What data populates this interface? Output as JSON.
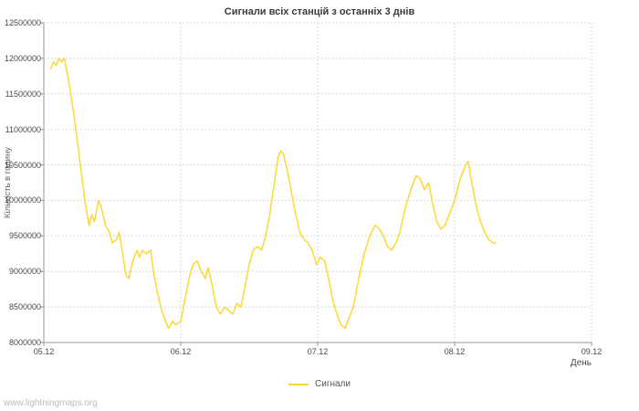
{
  "watermark": "www.lightningmaps.org",
  "colors": {
    "line": "#fdd835",
    "grid": "#d9d9d9",
    "axis": "#999999",
    "text": "#4a4a4a"
  },
  "chart_data": {
    "type": "line",
    "title": "Сигнали всіх станцій з останніх 3 днів",
    "xlabel": "День",
    "ylabel": "Кількість в годину",
    "xlim": [
      0,
      4
    ],
    "ylim": [
      8000000,
      12500000
    ],
    "grid": true,
    "y_ticks": [
      8000000,
      8500000,
      9000000,
      9500000,
      10000000,
      10500000,
      11000000,
      11500000,
      12000000,
      12500000
    ],
    "x_ticks": [
      {
        "pos": 0,
        "label": "05.12"
      },
      {
        "pos": 1,
        "label": "06.12"
      },
      {
        "pos": 2,
        "label": "07.12"
      },
      {
        "pos": 3,
        "label": "08.12"
      },
      {
        "pos": 4,
        "label": "09.12"
      }
    ],
    "legend": {
      "position": "bottom",
      "entries": [
        {
          "name": "Сигнали",
          "color": "#fdd835"
        }
      ]
    },
    "series": [
      {
        "name": "Сигнали",
        "color": "#fdd835",
        "x": [
          0.05,
          0.07,
          0.09,
          0.11,
          0.13,
          0.15,
          0.18,
          0.22,
          0.26,
          0.3,
          0.33,
          0.35,
          0.37,
          0.4,
          0.42,
          0.45,
          0.48,
          0.5,
          0.53,
          0.55,
          0.58,
          0.6,
          0.62,
          0.65,
          0.68,
          0.7,
          0.72,
          0.75,
          0.78,
          0.8,
          0.83,
          0.86,
          0.89,
          0.91,
          0.94,
          0.96,
          1.0,
          1.03,
          1.06,
          1.09,
          1.12,
          1.15,
          1.18,
          1.2,
          1.23,
          1.26,
          1.29,
          1.32,
          1.35,
          1.38,
          1.41,
          1.44,
          1.47,
          1.5,
          1.53,
          1.56,
          1.59,
          1.62,
          1.65,
          1.68,
          1.71,
          1.73,
          1.75,
          1.78,
          1.81,
          1.84,
          1.87,
          1.9,
          1.93,
          1.96,
          1.99,
          2.02,
          2.05,
          2.08,
          2.11,
          2.14,
          2.17,
          2.2,
          2.23,
          2.26,
          2.3,
          2.34,
          2.38,
          2.42,
          2.45,
          2.48,
          2.51,
          2.54,
          2.57,
          2.6,
          2.64,
          2.68,
          2.72,
          2.75,
          2.78,
          2.81,
          2.84,
          2.87,
          2.9,
          2.93,
          2.96,
          3.0,
          3.04,
          3.08,
          3.1,
          3.13,
          3.16,
          3.19,
          3.22,
          3.25,
          3.28,
          3.3
        ],
        "y": [
          11850000,
          11950000,
          11900000,
          12000000,
          11950000,
          12000000,
          11700000,
          11200000,
          10600000,
          10000000,
          9650000,
          9800000,
          9700000,
          10000000,
          9900000,
          9650000,
          9550000,
          9400000,
          9450000,
          9550000,
          9200000,
          8950000,
          8900000,
          9150000,
          9300000,
          9200000,
          9300000,
          9250000,
          9300000,
          9000000,
          8700000,
          8450000,
          8300000,
          8200000,
          8300000,
          8250000,
          8300000,
          8600000,
          8900000,
          9100000,
          9150000,
          9000000,
          8900000,
          9050000,
          8800000,
          8500000,
          8400000,
          8500000,
          8450000,
          8400000,
          8550000,
          8500000,
          8800000,
          9100000,
          9300000,
          9350000,
          9300000,
          9500000,
          9800000,
          10200000,
          10600000,
          10700000,
          10650000,
          10400000,
          10100000,
          9800000,
          9550000,
          9450000,
          9400000,
          9300000,
          9100000,
          9200000,
          9150000,
          8900000,
          8600000,
          8400000,
          8250000,
          8200000,
          8350000,
          8500000,
          8900000,
          9250000,
          9500000,
          9650000,
          9600000,
          9500000,
          9350000,
          9300000,
          9400000,
          9550000,
          9900000,
          10150000,
          10350000,
          10300000,
          10150000,
          10250000,
          9950000,
          9700000,
          9600000,
          9650000,
          9800000,
          10000000,
          10300000,
          10500000,
          10550000,
          10200000,
          9900000,
          9700000,
          9550000,
          9450000,
          9400000,
          9400000
        ]
      }
    ]
  }
}
